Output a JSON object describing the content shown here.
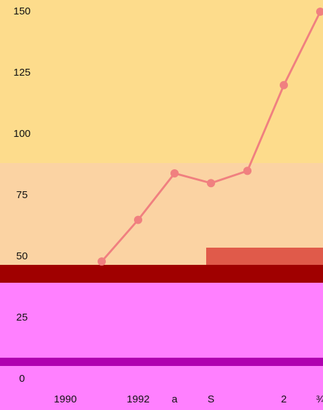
{
  "chart_data": {
    "type": "line",
    "categories": [
      "1990",
      null,
      "1992",
      "a",
      "S",
      null,
      "2",
      "¾"
    ],
    "series": [
      {
        "color": "#f08080",
        "values": [
          null,
          48,
          65,
          84,
          80,
          85,
          120,
          150
        ]
      }
    ],
    "ylim": [
      0,
      150
    ],
    "yticks": [
      0,
      25,
      50,
      75,
      100,
      125,
      150
    ]
  }
}
